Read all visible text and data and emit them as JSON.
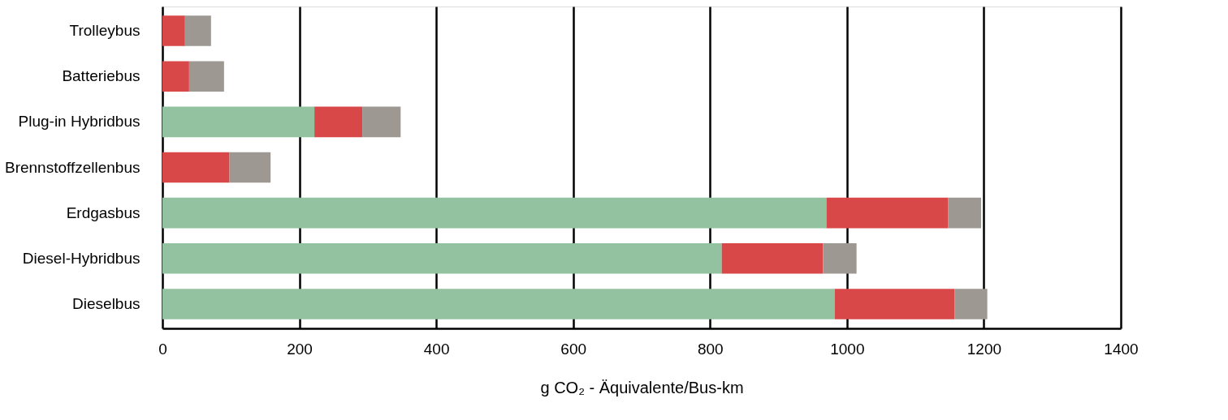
{
  "chart_data": {
    "type": "bar",
    "orientation": "horizontal",
    "stacked": true,
    "xlabel": "g CO₂ - Äquivalente/Bus-km",
    "categories": [
      "Trolleybus",
      "Batteriebus",
      "Plug-in Hybridbus",
      "Brennstoffzellenbus",
      "Erdgasbus",
      "Diesel-Hybridbus",
      "Dieselbus"
    ],
    "series": [
      {
        "color": "#93c2a1",
        "values": [
          null,
          null,
          222,
          null,
          970,
          817,
          982
        ]
      },
      {
        "color": "#d94848",
        "values": [
          33,
          39,
          70,
          98,
          178,
          148,
          175
        ]
      },
      {
        "color": "#9e9893",
        "values": [
          38,
          51,
          56,
          60,
          48,
          49,
          48
        ]
      }
    ],
    "xlim": [
      0,
      1400
    ],
    "xticks": [
      0,
      200,
      400,
      600,
      800,
      1000,
      1200,
      1400
    ],
    "grid": "x"
  }
}
